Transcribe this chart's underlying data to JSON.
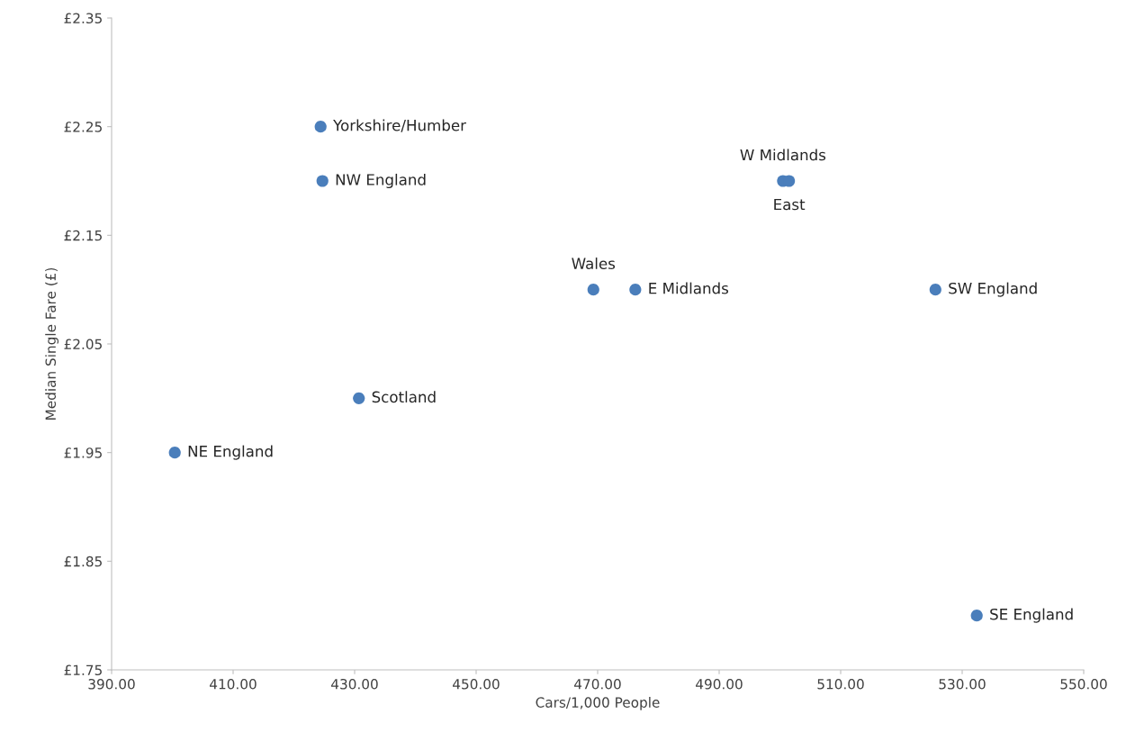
{
  "chart_data": {
    "type": "scatter",
    "xlabel": "Cars/1,000 People",
    "ylabel": "Median Single Fare (£)",
    "series": [
      {
        "color": "#4a7ebb",
        "x": [
          424.4,
          424.7,
          500.5,
          501.5,
          469.3,
          476.2,
          525.6,
          430.7,
          400.4,
          532.4
        ],
        "values": [
          2.25,
          2.2,
          2.2,
          2.2,
          2.1,
          2.1,
          2.1,
          2.0,
          1.95,
          1.8
        ]
      }
    ],
    "annotations": [
      {
        "text": "Yorkshire/Humber",
        "x": 424.4,
        "y": 2.25
      },
      {
        "text": "NW England",
        "x": 424.7,
        "y": 2.2
      },
      {
        "text": "W Midlands",
        "x": 500.5,
        "y": 2.2
      },
      {
        "text": "East",
        "x": 501.5,
        "y": 2.2
      },
      {
        "text": "Wales",
        "x": 469.3,
        "y": 2.1
      },
      {
        "text": "E Midlands",
        "x": 476.2,
        "y": 2.1
      },
      {
        "text": "SW England",
        "x": 525.6,
        "y": 2.1
      },
      {
        "text": "Scotland",
        "x": 430.7,
        "y": 2.0
      },
      {
        "text": "NE England",
        "x": 400.4,
        "y": 1.95
      },
      {
        "text": "SE England",
        "x": 532.4,
        "y": 1.8
      }
    ],
    "xlim": [
      390,
      550
    ],
    "ylim": [
      1.75,
      2.35
    ],
    "xticks": [
      {
        "value": 390,
        "label": "390.00"
      },
      {
        "value": 410,
        "label": "410.00"
      },
      {
        "value": 430,
        "label": "430.00"
      },
      {
        "value": 450,
        "label": "450.00"
      },
      {
        "value": 470,
        "label": "470.00"
      },
      {
        "value": 490,
        "label": "490.00"
      },
      {
        "value": 510,
        "label": "510.00"
      },
      {
        "value": 530,
        "label": "530.00"
      },
      {
        "value": 550,
        "label": "550.00"
      }
    ],
    "yticks": [
      {
        "value": 1.75,
        "label": "£1.75"
      },
      {
        "value": 1.85,
        "label": "£1.85"
      },
      {
        "value": 1.95,
        "label": "£1.95"
      },
      {
        "value": 2.05,
        "label": "£2.05"
      },
      {
        "value": 2.15,
        "label": "£2.15"
      },
      {
        "value": 2.25,
        "label": "£2.25"
      },
      {
        "value": 2.35,
        "label": "£2.35"
      }
    ],
    "grid": false,
    "marker": "circle"
  }
}
